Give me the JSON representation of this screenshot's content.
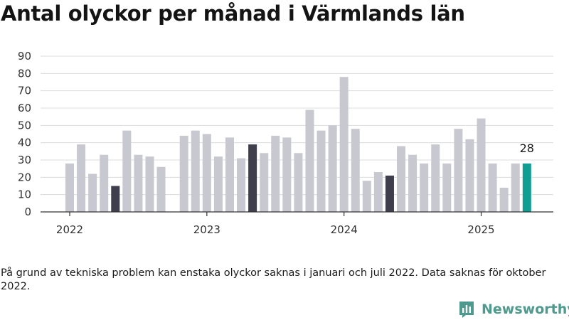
{
  "title": "Antal olyckor per månad i Värmlands län",
  "footnote": "På grund av tekniska problem kan enstaka olyckor saknas i januari och juli 2022. Data saknas för oktober 2022.",
  "brand": {
    "name": "Newsworthy",
    "color": "#4f9a8e"
  },
  "colors": {
    "bar": "#c8c8d0",
    "may": "#3e3e4c",
    "latest": "#119e92",
    "grid": "#dcdcdc",
    "axis": "#333333"
  },
  "chart_data": {
    "type": "bar",
    "title": "Antal olyckor per månad i Värmlands län",
    "xlabel": "",
    "ylabel": "",
    "ylim": [
      0,
      90
    ],
    "y_ticks": [
      0,
      10,
      20,
      30,
      40,
      50,
      60,
      70,
      80,
      90
    ],
    "x_ticks": [
      "2022",
      "2023",
      "2024",
      "2025"
    ],
    "grid": true,
    "categories": [
      "2022-01",
      "2022-02",
      "2022-03",
      "2022-04",
      "2022-05",
      "2022-06",
      "2022-07",
      "2022-08",
      "2022-09",
      "2022-10",
      "2022-11",
      "2022-12",
      "2023-01",
      "2023-02",
      "2023-03",
      "2023-04",
      "2023-05",
      "2023-06",
      "2023-07",
      "2023-08",
      "2023-09",
      "2023-10",
      "2023-11",
      "2023-12",
      "2024-01",
      "2024-02",
      "2024-03",
      "2024-04",
      "2024-05",
      "2024-06",
      "2024-07",
      "2024-08",
      "2024-09",
      "2024-10",
      "2024-11",
      "2024-12",
      "2025-01",
      "2025-02",
      "2025-03",
      "2025-04",
      "2025-05"
    ],
    "values": [
      28,
      39,
      22,
      33,
      15,
      47,
      33,
      32,
      26,
      null,
      44,
      47,
      45,
      32,
      43,
      31,
      39,
      34,
      44,
      43,
      34,
      59,
      47,
      50,
      78,
      48,
      18,
      23,
      21,
      38,
      33,
      28,
      39,
      28,
      48,
      42,
      54,
      28,
      14,
      28,
      28
    ],
    "highlighted": [
      "2022-05",
      "2023-05",
      "2024-05",
      "2025-05"
    ],
    "annotations": [
      {
        "category": "2025-05",
        "text": "28"
      }
    ]
  }
}
